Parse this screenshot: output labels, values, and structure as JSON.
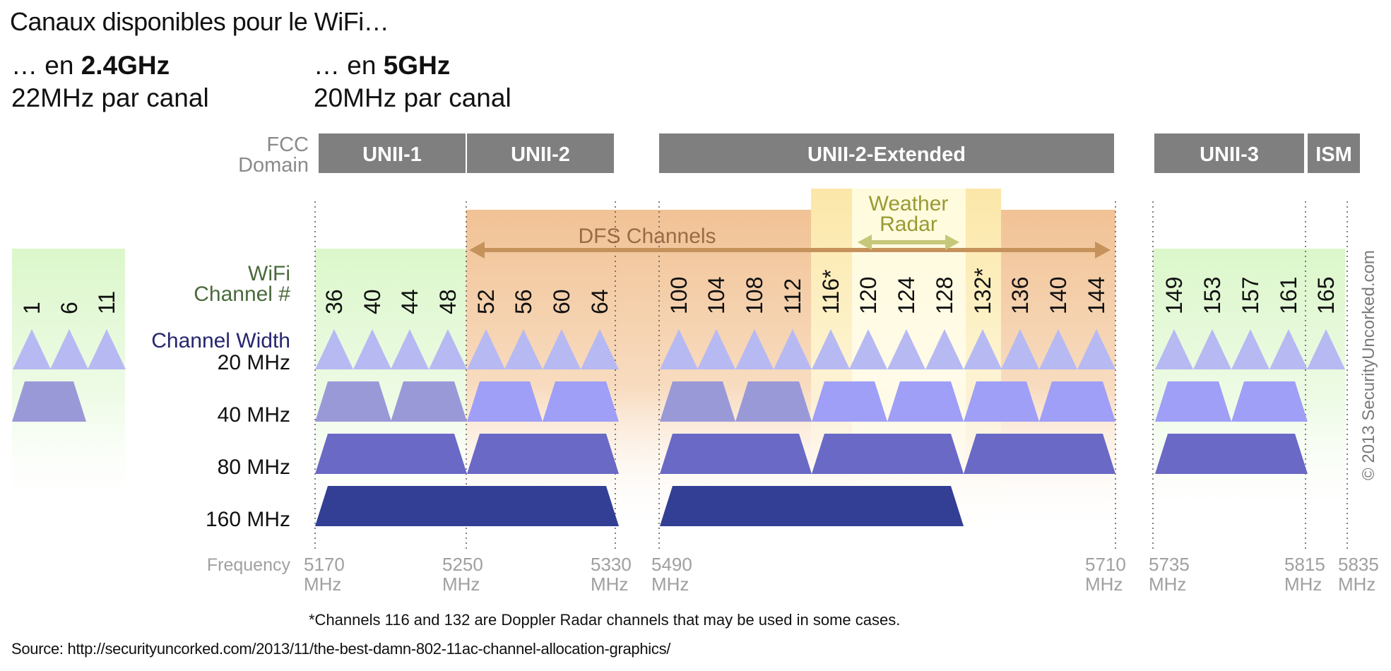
{
  "header": {
    "title": "Canaux disponibles pour le WiFi…",
    "band24_prefix": "… en ",
    "band24_bold": "2.4GHz",
    "band24_width": "22MHz par canal",
    "band5_prefix": "… en ",
    "band5_bold": "5GHz",
    "band5_width": "20MHz par canal"
  },
  "diagram": {
    "fcc_label_line1": "FCC",
    "fcc_label_line2": "Domain",
    "domains": [
      "UNII-1",
      "UNII-2",
      "UNII-2-Extended",
      "UNII-3",
      "ISM"
    ],
    "wifi_label_line1": "WiFi",
    "wifi_label_line2": "Channel #",
    "channel_width_label": "Channel Width",
    "widths": [
      "20 MHz",
      "40 MHz",
      "80 MHz",
      "160 MHz"
    ],
    "channels_24": [
      "1",
      "6",
      "11"
    ],
    "channels_5": [
      "36",
      "40",
      "44",
      "48",
      "52",
      "56",
      "60",
      "64",
      "100",
      "104",
      "108",
      "112",
      "116*",
      "120",
      "124",
      "128",
      "132*",
      "136",
      "140",
      "144",
      "149",
      "153",
      "157",
      "161",
      "165"
    ],
    "dfs_label": "DFS Channels",
    "weather_label_line1": "Weather",
    "weather_label_line2": "Radar",
    "frequency_label": "Frequency",
    "frequencies": [
      {
        "value": "5170",
        "unit": "MHz"
      },
      {
        "value": "5250",
        "unit": "MHz"
      },
      {
        "value": "5330",
        "unit": "MHz"
      },
      {
        "value": "5490",
        "unit": "MHz"
      },
      {
        "value": "5710",
        "unit": "MHz"
      },
      {
        "value": "5735",
        "unit": "MHz"
      },
      {
        "value": "5815",
        "unit": "MHz"
      },
      {
        "value": "5835",
        "unit": "MHz"
      }
    ],
    "copyright": "© 2013 SecurityUncorked.com",
    "footnote": "*Channels 116 and 132 are Doppler Radar channels that may be used in some cases.",
    "colors": {
      "domain_bar": "#7f7f7f",
      "green_zone": "#dff8cf",
      "dfs_zone": "#f3c89e",
      "weather_zone": "#fdf1b8",
      "w20": "#b7b9f3",
      "w40_light": "#9f9ff7",
      "w40_gray": "#9a99d8",
      "w80": "#6a69c6",
      "w160": "#333f94",
      "dfs_arrow": "#c6925c",
      "weather_text": "#9a9a35",
      "wifi_label": "#4b6a3c",
      "width_label": "#262670"
    }
  },
  "source": "Source: http://securityuncorked.com/2013/11/the-best-damn-802-11ac-channel-allocation-graphics/"
}
